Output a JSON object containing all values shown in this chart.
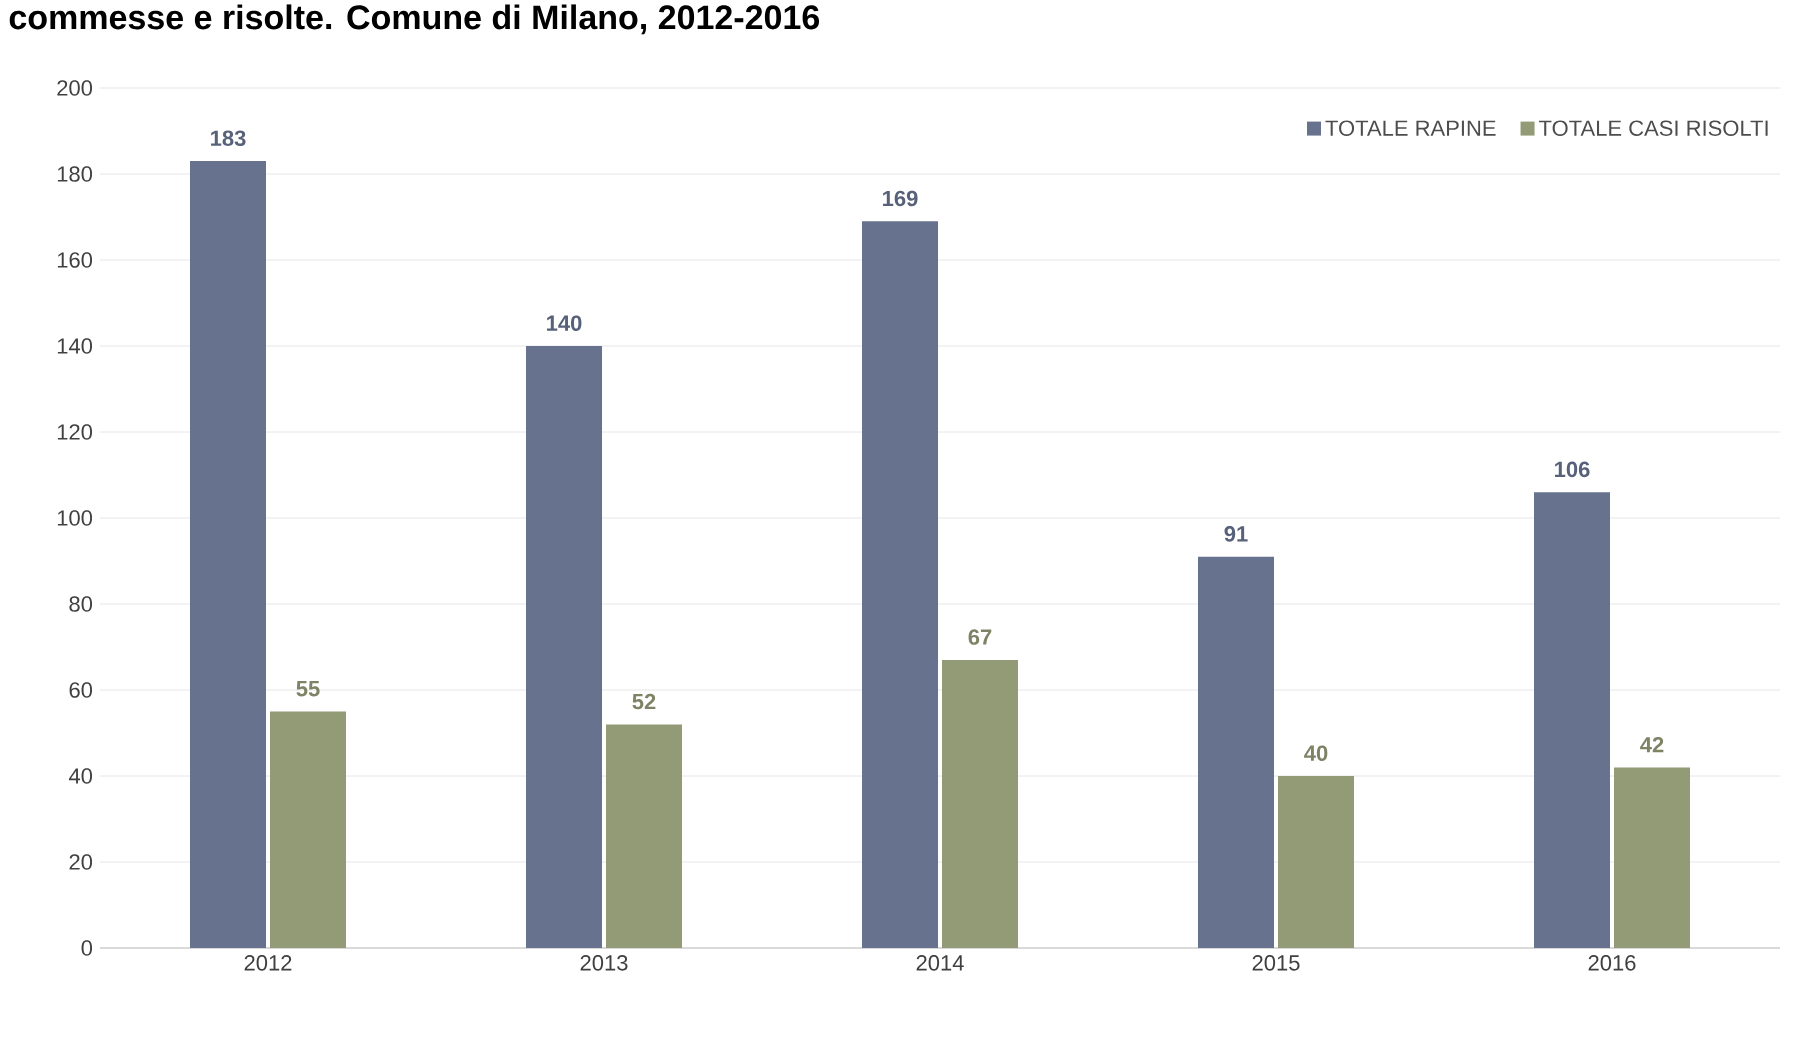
{
  "chart_data": {
    "type": "bar",
    "title": "commesse e risolte. Comune di Milano, 2012-2016",
    "categories": [
      "2012",
      "2013",
      "2014",
      "2015",
      "2016"
    ],
    "series": [
      {
        "name": "TOTALE RAPINE",
        "color": "#67728e",
        "values": [
          183,
          140,
          169,
          91,
          106
        ]
      },
      {
        "name": "TOTALE CASI RISOLTI",
        "color": "#939a76",
        "values": [
          55,
          52,
          67,
          40,
          42
        ]
      }
    ],
    "ylim": [
      0,
      200
    ],
    "yticks": [
      0,
      20,
      40,
      60,
      80,
      100,
      120,
      140,
      160,
      180,
      200
    ],
    "grid": "y",
    "legend": "top right",
    "data_labels": true
  }
}
